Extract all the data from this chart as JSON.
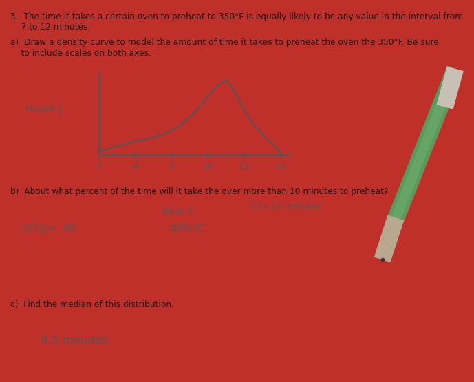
{
  "bg_color": "#c0302a",
  "paper_color": "#d4cfc8",
  "paper_color2": "#ccc8c0",
  "title_line1": "3.  The time it takes a certain oven to preheat to 350°F is equally likely to be any value in the interval from",
  "title_line2": "    7 to 12 minutes.",
  "part_a_line1": "a)  Draw a density curve to model the amount of time it takes to preheat the oven the 350°F. Be sure",
  "part_a_line2": "    to include scales on both axes.",
  "graph_ylabel": "Height ¹₅",
  "graph_xlabel": "Base 5",
  "graph_xticks": [
    7,
    8,
    9,
    10,
    11,
    12
  ],
  "part_b_line1": "b)  About what percent of the time will it take the over more than 10 minutes to preheat?",
  "part_b_ans_right": "11+12 minutes",
  "part_b_ans_left": "2(½)= .40",
  "part_b_ans_mid": "40%℃",
  "part_c_line1": "c)  Find the median of this distribution.",
  "part_c_ans": "9.5 minutes",
  "text_color": "#1a1a1a",
  "handwriting_color": "#555555",
  "pencil_green": "#5a9a5a",
  "pencil_light_green": "#7ab87a",
  "pencil_eraser": "#c8c0b4",
  "pencil_tip": "#888888"
}
